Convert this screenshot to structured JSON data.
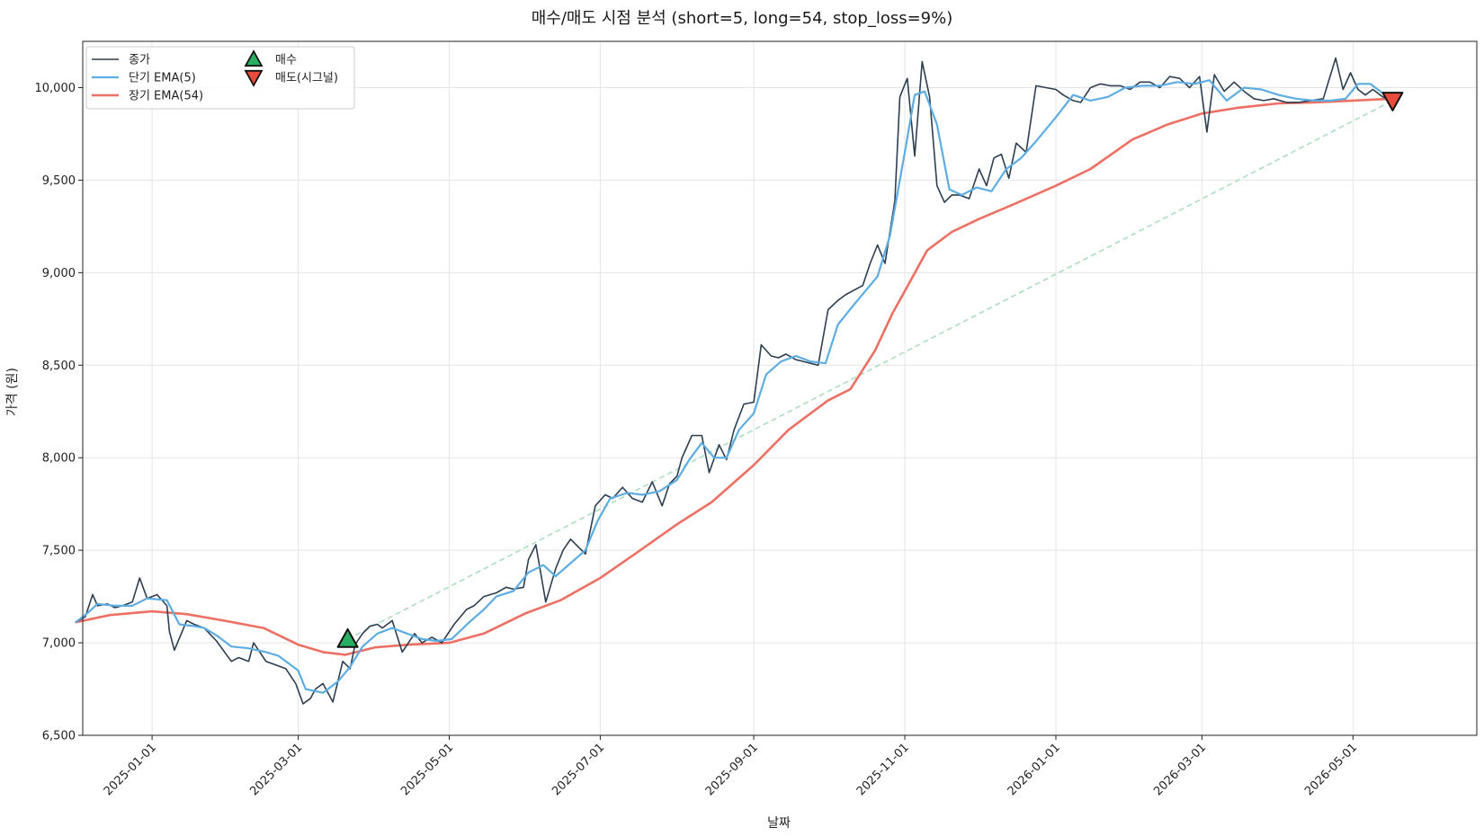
{
  "chart_data": {
    "type": "line",
    "title": "매수/매도 시점 분석 (short=5, long=54, stop_loss=9%)",
    "xlabel": "날짜",
    "ylabel": "가격 (원)",
    "ylim": [
      6500,
      10250
    ],
    "xlim": [
      "2024-12-04",
      "2026-06-20"
    ],
    "grid": true,
    "legend_position": "top-left",
    "yticks": [
      6500,
      7000,
      7500,
      8000,
      8500,
      9000,
      9500,
      10000
    ],
    "ytick_labels": [
      "6,500",
      "7,000",
      "7,500",
      "8,000",
      "8,500",
      "9,000",
      "9,500",
      "10,000"
    ],
    "xticks": [
      "2025-01-01",
      "2025-03-01",
      "2025-05-01",
      "2025-07-01",
      "2025-09-01",
      "2025-11-01",
      "2026-01-01",
      "2026-03-01",
      "2026-05-01"
    ],
    "colors": {
      "close": "#2c3e50",
      "short_ema": "#5dade2",
      "long_ema": "#ec7063",
      "trade_line": "#a9dfbf",
      "buy": "#27ae60",
      "sell": "#e74c3c",
      "grid": "#e5e5e5"
    },
    "series": [
      {
        "name": "종가",
        "key": "close",
        "x": [
          "2024-12-01",
          "2024-12-05",
          "2024-12-08",
          "2024-12-10",
          "2024-12-14",
          "2024-12-17",
          "2024-12-20",
          "2024-12-24",
          "2024-12-27",
          "2024-12-30",
          "2025-01-03",
          "2025-01-07",
          "2025-01-08",
          "2025-01-10",
          "2025-01-15",
          "2025-01-18",
          "2025-01-22",
          "2025-01-27",
          "2025-02-02",
          "2025-02-05",
          "2025-02-09",
          "2025-02-11",
          "2025-02-16",
          "2025-02-20",
          "2025-02-24",
          "2025-02-28",
          "2025-03-03",
          "2025-03-06",
          "2025-03-08",
          "2025-03-11",
          "2025-03-15",
          "2025-03-19",
          "2025-03-22",
          "2025-03-24",
          "2025-03-27",
          "2025-03-30",
          "2025-04-02",
          "2025-04-04",
          "2025-04-08",
          "2025-04-12",
          "2025-04-17",
          "2025-04-20",
          "2025-04-24",
          "2025-04-28",
          "2025-05-03",
          "2025-05-08",
          "2025-05-11",
          "2025-05-15",
          "2025-05-20",
          "2025-05-24",
          "2025-05-27",
          "2025-05-31",
          "2025-06-02",
          "2025-06-05",
          "2025-06-09",
          "2025-06-13",
          "2025-06-16",
          "2025-06-19",
          "2025-06-25",
          "2025-06-29",
          "2025-07-03",
          "2025-07-06",
          "2025-07-10",
          "2025-07-14",
          "2025-07-18",
          "2025-07-22",
          "2025-07-26",
          "2025-07-29",
          "2025-08-01",
          "2025-08-03",
          "2025-08-07",
          "2025-08-11",
          "2025-08-14",
          "2025-08-18",
          "2025-08-21",
          "2025-08-24",
          "2025-08-28",
          "2025-09-01",
          "2025-09-04",
          "2025-09-08",
          "2025-09-11",
          "2025-09-14",
          "2025-09-18",
          "2025-09-21",
          "2025-09-24",
          "2025-09-27",
          "2025-10-01",
          "2025-10-05",
          "2025-10-08",
          "2025-10-12",
          "2025-10-15",
          "2025-10-18",
          "2025-10-21",
          "2025-10-24",
          "2025-10-28",
          "2025-10-30",
          "2025-11-02",
          "2025-11-05",
          "2025-11-08",
          "2025-11-11",
          "2025-11-14",
          "2025-11-17",
          "2025-11-20",
          "2025-11-23",
          "2025-11-27",
          "2025-12-01",
          "2025-12-04",
          "2025-12-07",
          "2025-12-10",
          "2025-12-13",
          "2025-12-16",
          "2025-12-20",
          "2025-12-24",
          "2025-12-28",
          "2026-01-01",
          "2026-01-04",
          "2026-01-08",
          "2026-01-11",
          "2026-01-15",
          "2026-01-19",
          "2026-01-23",
          "2026-01-27",
          "2026-01-31",
          "2026-02-04",
          "2026-02-08",
          "2026-02-12",
          "2026-02-16",
          "2026-02-20",
          "2026-02-24",
          "2026-02-28",
          "2026-03-03",
          "2026-03-06",
          "2026-03-10",
          "2026-03-14",
          "2026-03-18",
          "2026-03-22",
          "2026-03-26",
          "2026-03-30",
          "2026-04-04",
          "2026-04-09",
          "2026-04-14",
          "2026-04-19",
          "2026-04-24",
          "2026-04-27",
          "2026-04-30",
          "2026-05-03",
          "2026-05-06",
          "2026-05-09",
          "2026-05-13",
          "2026-05-17"
        ],
        "values": [
          7110,
          7140,
          7260,
          7200,
          7210,
          7190,
          7200,
          7220,
          7350,
          7240,
          7260,
          7200,
          7060,
          6960,
          7120,
          7100,
          7080,
          7010,
          6900,
          6920,
          6900,
          7000,
          6900,
          6880,
          6860,
          6780,
          6670,
          6700,
          6750,
          6780,
          6680,
          6900,
          6860,
          6990,
          7050,
          7090,
          7100,
          7080,
          7120,
          6950,
          7050,
          7000,
          7030,
          7000,
          7100,
          7180,
          7200,
          7250,
          7270,
          7300,
          7290,
          7300,
          7450,
          7530,
          7220,
          7400,
          7500,
          7560,
          7480,
          7740,
          7800,
          7780,
          7840,
          7780,
          7760,
          7870,
          7740,
          7860,
          7900,
          8000,
          8120,
          8120,
          7920,
          8070,
          7990,
          8150,
          8290,
          8300,
          8610,
          8550,
          8540,
          8560,
          8530,
          8520,
          8510,
          8500,
          8800,
          8850,
          8880,
          8910,
          8930,
          9050,
          9150,
          9050,
          9390,
          9950,
          10050,
          9630,
          10140,
          9950,
          9470,
          9380,
          9420,
          9420,
          9400,
          9560,
          9470,
          9620,
          9640,
          9510,
          9700,
          9650,
          10010,
          10000,
          9990,
          9960,
          9930,
          9920,
          10000,
          10020,
          10010,
          10010,
          9990,
          10030,
          10030,
          10000,
          10060,
          10050,
          10000,
          10060,
          9760,
          10070,
          9980,
          10030,
          9980,
          9940,
          9930,
          9940,
          9920,
          9920,
          9930,
          9940,
          10160,
          9990,
          10080,
          9990,
          9960,
          9990,
          9950,
          9930
        ]
      },
      {
        "name": "단기 EMA(5)",
        "key": "short_ema",
        "x": [
          "2024-12-01",
          "2024-12-05",
          "2024-12-10",
          "2024-12-17",
          "2024-12-24",
          "2024-12-30",
          "2025-01-07",
          "2025-01-12",
          "2025-01-18",
          "2025-01-22",
          "2025-01-27",
          "2025-02-02",
          "2025-02-09",
          "2025-02-16",
          "2025-02-21",
          "2025-02-26",
          "2025-03-01",
          "2025-03-04",
          "2025-03-11",
          "2025-03-17",
          "2025-03-22",
          "2025-03-27",
          "2025-04-02",
          "2025-04-08",
          "2025-04-14",
          "2025-04-20",
          "2025-04-26",
          "2025-05-02",
          "2025-05-09",
          "2025-05-15",
          "2025-05-20",
          "2025-05-27",
          "2025-06-02",
          "2025-06-08",
          "2025-06-13",
          "2025-06-19",
          "2025-06-25",
          "2025-06-30",
          "2025-07-05",
          "2025-07-12",
          "2025-07-18",
          "2025-07-25",
          "2025-08-01",
          "2025-08-06",
          "2025-08-11",
          "2025-08-16",
          "2025-08-21",
          "2025-08-26",
          "2025-09-01",
          "2025-09-06",
          "2025-09-12",
          "2025-09-18",
          "2025-09-24",
          "2025-09-30",
          "2025-10-05",
          "2025-10-11",
          "2025-10-16",
          "2025-10-21",
          "2025-10-26",
          "2025-11-01",
          "2025-11-05",
          "2025-11-09",
          "2025-11-14",
          "2025-11-19",
          "2025-11-24",
          "2025-11-30",
          "2025-12-06",
          "2025-12-12",
          "2025-12-18",
          "2025-12-24",
          "2026-01-01",
          "2026-01-08",
          "2026-01-15",
          "2026-01-22",
          "2026-01-29",
          "2026-02-05",
          "2026-02-12",
          "2026-02-19",
          "2026-02-26",
          "2026-03-04",
          "2026-03-11",
          "2026-03-18",
          "2026-03-25",
          "2026-04-01",
          "2026-04-08",
          "2026-04-15",
          "2026-04-22",
          "2026-04-28",
          "2026-05-03",
          "2026-05-08",
          "2026-05-13",
          "2026-05-17"
        ],
        "values": [
          7110,
          7150,
          7210,
          7200,
          7200,
          7240,
          7230,
          7100,
          7090,
          7080,
          7040,
          6980,
          6970,
          6950,
          6930,
          6880,
          6850,
          6750,
          6730,
          6790,
          6870,
          6980,
          7050,
          7080,
          7050,
          7020,
          7010,
          7020,
          7110,
          7180,
          7250,
          7280,
          7380,
          7420,
          7360,
          7430,
          7500,
          7660,
          7780,
          7810,
          7800,
          7820,
          7880,
          7990,
          8080,
          8000,
          8000,
          8150,
          8240,
          8450,
          8520,
          8550,
          8520,
          8510,
          8720,
          8820,
          8900,
          8980,
          9200,
          9650,
          9960,
          9980,
          9800,
          9450,
          9420,
          9460,
          9440,
          9560,
          9620,
          9710,
          9840,
          9960,
          9930,
          9950,
          10000,
          10010,
          10010,
          10030,
          10020,
          10040,
          9930,
          10000,
          9990,
          9960,
          9940,
          9930,
          9930,
          9940,
          10020,
          10020,
          9970,
          9960
        ]
      },
      {
        "name": "장기 EMA(54)",
        "key": "long_ema",
        "x": [
          "2024-12-01",
          "2024-12-15",
          "2025-01-01",
          "2025-01-15",
          "2025-01-30",
          "2025-02-15",
          "2025-03-01",
          "2025-03-11",
          "2025-03-20",
          "2025-04-01",
          "2025-04-15",
          "2025-05-01",
          "2025-05-15",
          "2025-06-01",
          "2025-06-15",
          "2025-07-01",
          "2025-07-15",
          "2025-08-01",
          "2025-08-15",
          "2025-09-01",
          "2025-09-15",
          "2025-10-01",
          "2025-10-10",
          "2025-10-20",
          "2025-10-27",
          "2025-11-01",
          "2025-11-10",
          "2025-11-20",
          "2025-12-01",
          "2025-12-15",
          "2026-01-01",
          "2026-01-15",
          "2026-02-01",
          "2026-02-15",
          "2026-03-01",
          "2026-03-15",
          "2026-04-01",
          "2026-04-15",
          "2026-05-01",
          "2026-05-17"
        ],
        "values": [
          7110,
          7150,
          7170,
          7155,
          7120,
          7080,
          6990,
          6950,
          6935,
          6975,
          6990,
          7000,
          7050,
          7160,
          7230,
          7350,
          7480,
          7640,
          7760,
          7960,
          8150,
          8310,
          8370,
          8580,
          8780,
          8900,
          9120,
          9220,
          9290,
          9370,
          9470,
          9560,
          9720,
          9800,
          9860,
          9890,
          9915,
          9920,
          9930,
          9940
        ]
      }
    ],
    "trade_line": {
      "from": [
        "2025-03-21",
        7020
      ],
      "to": [
        "2026-05-17",
        9930
      ]
    },
    "markers": [
      {
        "name": "매수",
        "type": "buy",
        "x": "2025-03-21",
        "y": 7020
      },
      {
        "name": "매도(시그널)",
        "type": "sell",
        "x": "2026-05-17",
        "y": 9930
      }
    ]
  }
}
